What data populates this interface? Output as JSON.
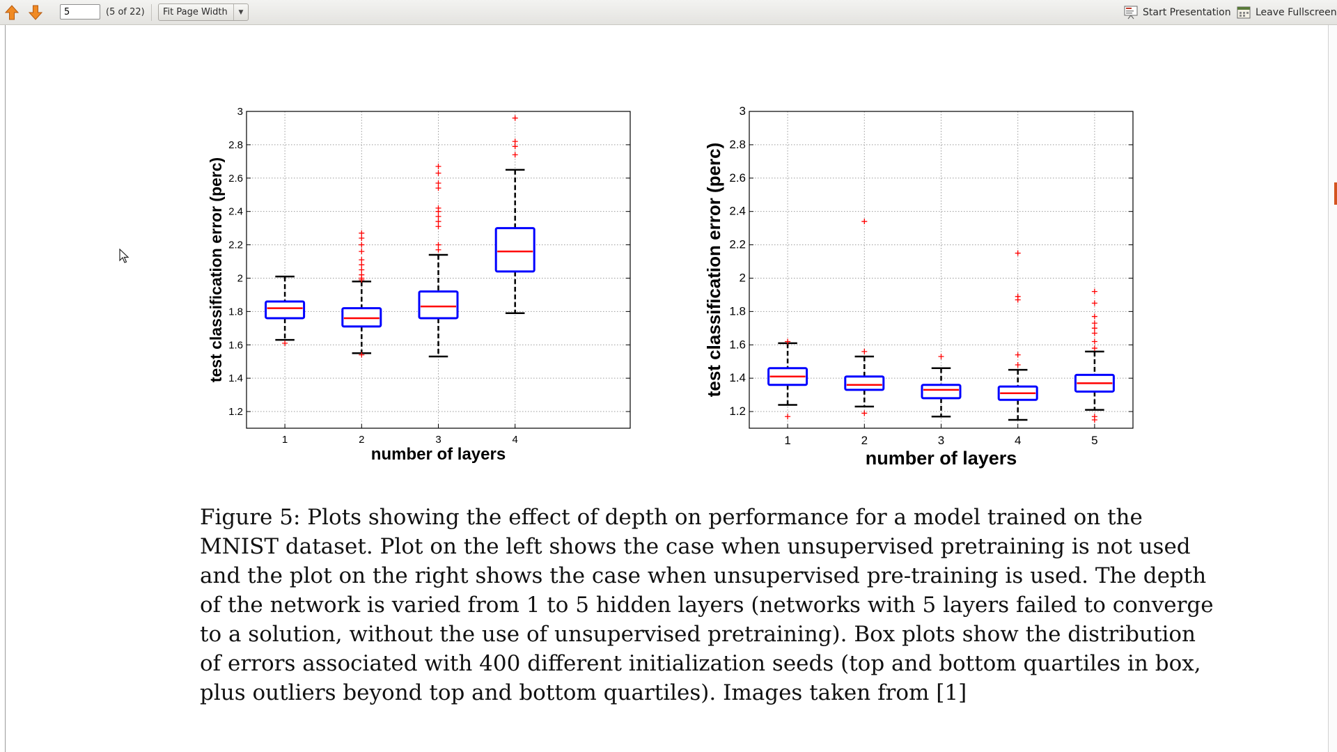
{
  "toolbar": {
    "prev_label": "Previous page",
    "next_label": "Next page",
    "page_value": "5",
    "page_count": "(5 of 22)",
    "zoom_value": "Fit Page Width",
    "start_presentation": "Start Presentation",
    "leave_fullscreen": "Leave Fullscreen"
  },
  "colors": {
    "box": "#0000ff",
    "median": "#ff0000",
    "whisker": "#000000",
    "outlier": "#ff0000",
    "scroll_thumb": "#d4541f",
    "toolbar_arrow": "#f08a24"
  },
  "icons": {
    "prev": "arrow-up-icon",
    "next": "arrow-down-icon",
    "presentation": "presentation-icon",
    "fullscreen": "fullscreen-icon",
    "zoom_dropdown": "chevron-down-icon",
    "cursor": "mouse-pointer-icon"
  },
  "chart_data": [
    {
      "type": "boxplot",
      "ylabel": "test classification error (perc)",
      "xlabel": "number of layers",
      "ylim": [
        1.1,
        3.0
      ],
      "xlim": [
        0.5,
        5.5
      ],
      "yticks": [
        "1.2",
        "1.4",
        "1.6",
        "1.8",
        "2",
        "2.2",
        "2.4",
        "2.6",
        "2.8",
        "3"
      ],
      "xticks": [
        "1",
        "2",
        "3",
        "4"
      ],
      "grid": true,
      "boxes": [
        {
          "x": 1,
          "low": 1.63,
          "q1": 1.76,
          "median": 1.82,
          "q3": 1.86,
          "high": 2.01,
          "outliers": [
            1.61
          ]
        },
        {
          "x": 2,
          "low": 1.55,
          "q1": 1.71,
          "median": 1.76,
          "q3": 1.82,
          "high": 1.98,
          "outliers": [
            1.54,
            1.99,
            2.0,
            2.02,
            2.05,
            2.08,
            2.11,
            2.16,
            2.2,
            2.24,
            2.27
          ]
        },
        {
          "x": 3,
          "low": 1.53,
          "q1": 1.76,
          "median": 1.83,
          "q3": 1.92,
          "high": 2.14,
          "outliers": [
            2.17,
            2.2,
            2.31,
            2.34,
            2.37,
            2.4,
            2.42,
            2.54,
            2.57,
            2.63,
            2.67
          ]
        },
        {
          "x": 4,
          "low": 1.79,
          "q1": 2.04,
          "median": 2.16,
          "q3": 2.3,
          "high": 2.65,
          "outliers": [
            2.74,
            2.79,
            2.82,
            2.96
          ]
        }
      ]
    },
    {
      "type": "boxplot",
      "ylabel": "test classification error (perc)",
      "xlabel": "number of layers",
      "ylim": [
        1.1,
        3.0
      ],
      "xlim": [
        0.5,
        5.5
      ],
      "yticks": [
        "1.2",
        "1.4",
        "1.6",
        "1.8",
        "2",
        "2.2",
        "2.4",
        "2.6",
        "2.8",
        "3"
      ],
      "xticks": [
        "1",
        "2",
        "3",
        "4",
        "5"
      ],
      "grid": true,
      "boxes": [
        {
          "x": 1,
          "low": 1.24,
          "q1": 1.36,
          "median": 1.41,
          "q3": 1.46,
          "high": 1.61,
          "outliers": [
            1.17,
            1.62
          ]
        },
        {
          "x": 2,
          "low": 1.23,
          "q1": 1.33,
          "median": 1.36,
          "q3": 1.41,
          "high": 1.53,
          "outliers": [
            1.19,
            1.56,
            2.34
          ]
        },
        {
          "x": 3,
          "low": 1.17,
          "q1": 1.28,
          "median": 1.33,
          "q3": 1.36,
          "high": 1.46,
          "outliers": [
            1.53
          ]
        },
        {
          "x": 4,
          "low": 1.15,
          "q1": 1.27,
          "median": 1.31,
          "q3": 1.35,
          "high": 1.45,
          "outliers": [
            1.48,
            1.54,
            1.87,
            1.89,
            2.15
          ]
        },
        {
          "x": 5,
          "low": 1.21,
          "q1": 1.32,
          "median": 1.37,
          "q3": 1.42,
          "high": 1.56,
          "outliers": [
            1.15,
            1.17,
            1.58,
            1.62,
            1.67,
            1.7,
            1.73,
            1.77,
            1.85,
            1.92
          ]
        }
      ]
    }
  ],
  "caption_lines": [
    "Figure 5: Plots showing the effect of depth on performance for a model trained on the",
    "MNIST dataset. Plot on the left shows the case when unsupervised pretraining is not used",
    "and the plot on the right shows the case when unsupervised pre-training is used. The depth",
    "of the network is varied from 1 to 5 hidden layers (networks with 5 layers failed to converge",
    "to a solution, without the use of unsupervised pretraining). Box plots show the distribution",
    "of errors associated with 400 different initialization seeds (top and bottom quartiles in box,",
    "plus outliers beyond top and bottom quartiles). Images taken from [1]"
  ]
}
